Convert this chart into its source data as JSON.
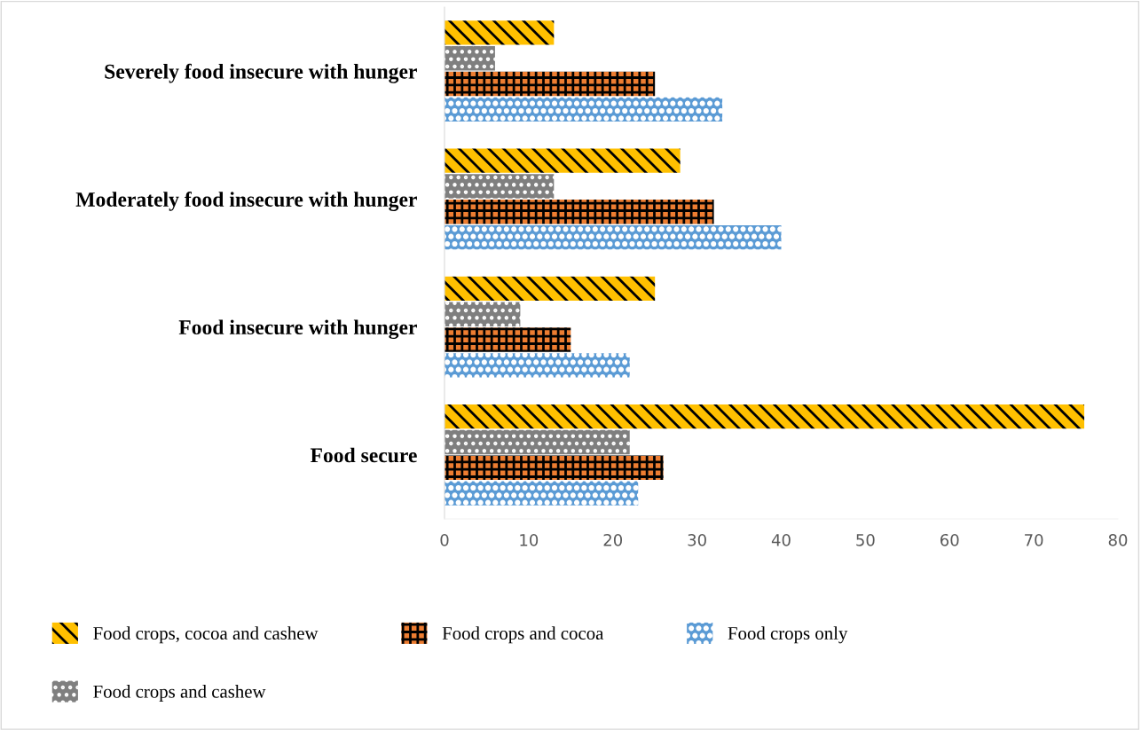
{
  "chart_data": {
    "type": "bar",
    "orientation": "horizontal",
    "categories": [
      "Severely food insecure with hunger",
      "Moderately food insecure with hunger",
      "Food insecure with hunger",
      "Food secure"
    ],
    "series": [
      {
        "name": "Food crops, cocoa and cashew",
        "color": "#ffc000",
        "values": [
          13,
          28,
          25,
          76
        ]
      },
      {
        "name": "Food crops and cashew",
        "color": "#7f7f7f",
        "values": [
          6,
          13,
          9,
          22
        ]
      },
      {
        "name": "Food crops and cocoa",
        "color": "#ed7d31",
        "values": [
          25,
          32,
          15,
          26
        ]
      },
      {
        "name": "Food crops only",
        "color": "#5b9bd5",
        "values": [
          33,
          40,
          22,
          23
        ]
      }
    ],
    "xlim": [
      0,
      80
    ],
    "xticks": [
      0,
      10,
      20,
      30,
      40,
      50,
      60,
      70,
      80
    ],
    "grid": false,
    "legend": "bottom"
  }
}
